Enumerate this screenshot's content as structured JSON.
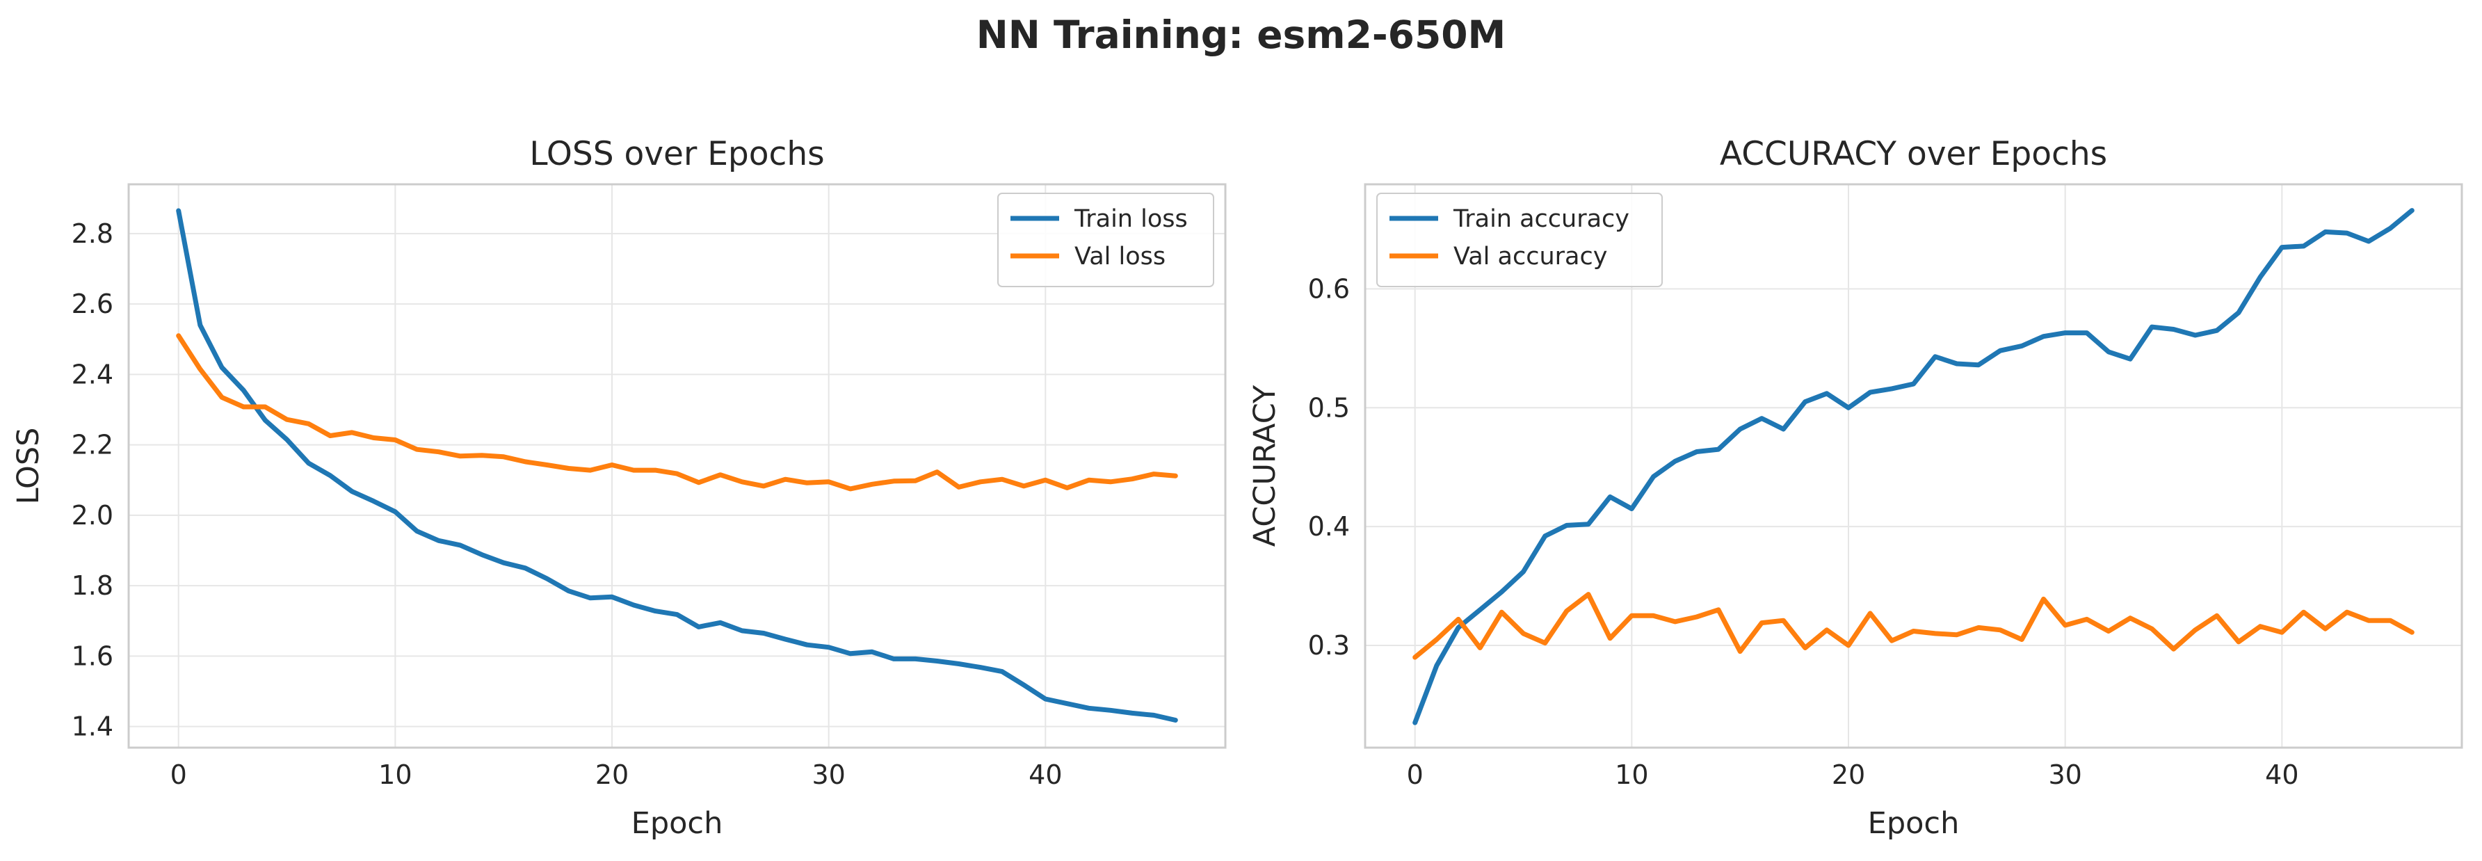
{
  "suptitle": "NN Training: esm2-650M",
  "colors": {
    "train": "#1f77b4",
    "val": "#ff7f0e",
    "grid": "#e6e6e6",
    "spine": "#cccccc"
  },
  "chart_data": [
    {
      "type": "line",
      "title": "LOSS over Epochs",
      "xlabel": "Epoch",
      "ylabel": "LOSS",
      "xlim": [
        -2.3,
        48.3
      ],
      "ylim": [
        1.34,
        2.94
      ],
      "xticks": [
        0,
        10,
        20,
        30,
        40
      ],
      "yticks": [
        1.4,
        1.6,
        1.8,
        2.0,
        2.2,
        2.4,
        2.6,
        2.8
      ],
      "ytick_labels": [
        "1.4",
        "1.6",
        "1.8",
        "2.0",
        "2.2",
        "2.4",
        "2.6",
        "2.8"
      ],
      "grid": true,
      "legend": "upper-right",
      "series": [
        {
          "name": "Train loss",
          "color": "#1f77b4",
          "values": [
            2.865,
            2.54,
            2.42,
            2.355,
            2.27,
            2.215,
            2.148,
            2.113,
            2.068,
            2.04,
            2.01,
            1.955,
            1.928,
            1.915,
            1.888,
            1.865,
            1.85,
            1.82,
            1.785,
            1.765,
            1.768,
            1.745,
            1.728,
            1.718,
            1.683,
            1.695,
            1.672,
            1.665,
            1.648,
            1.632,
            1.625,
            1.607,
            1.612,
            1.592,
            1.592,
            1.586,
            1.578,
            1.568,
            1.556,
            1.518,
            1.478,
            1.465,
            1.452,
            1.446,
            1.438,
            1.432,
            1.418
          ]
        },
        {
          "name": "Val loss",
          "color": "#ff7f0e",
          "values": [
            2.51,
            2.415,
            2.335,
            2.308,
            2.308,
            2.272,
            2.26,
            2.226,
            2.235,
            2.22,
            2.214,
            2.187,
            2.18,
            2.168,
            2.17,
            2.166,
            2.152,
            2.143,
            2.133,
            2.128,
            2.143,
            2.128,
            2.128,
            2.118,
            2.093,
            2.115,
            2.095,
            2.083,
            2.102,
            2.092,
            2.095,
            2.075,
            2.088,
            2.097,
            2.098,
            2.123,
            2.08,
            2.095,
            2.102,
            2.083,
            2.1,
            2.078,
            2.1,
            2.095,
            2.103,
            2.117,
            2.112
          ]
        }
      ]
    },
    {
      "type": "line",
      "title": "ACCURACY over Epochs",
      "xlabel": "Epoch",
      "ylabel": "ACCURACY",
      "xlim": [
        -2.3,
        48.3
      ],
      "ylim": [
        0.214,
        0.688
      ],
      "xticks": [
        0,
        10,
        20,
        30,
        40
      ],
      "yticks": [
        0.3,
        0.4,
        0.5,
        0.6
      ],
      "ytick_labels": [
        "0.3",
        "0.4",
        "0.5",
        "0.6"
      ],
      "grid": true,
      "legend": "upper-left",
      "series": [
        {
          "name": "Train accuracy",
          "color": "#1f77b4",
          "values": [
            0.235,
            0.283,
            0.315,
            0.33,
            0.345,
            0.362,
            0.392,
            0.401,
            0.402,
            0.425,
            0.415,
            0.442,
            0.455,
            0.463,
            0.465,
            0.482,
            0.491,
            0.482,
            0.505,
            0.512,
            0.5,
            0.513,
            0.516,
            0.52,
            0.543,
            0.537,
            0.536,
            0.548,
            0.552,
            0.56,
            0.563,
            0.563,
            0.547,
            0.541,
            0.568,
            0.566,
            0.561,
            0.565,
            0.58,
            0.61,
            0.635,
            0.636,
            0.648,
            0.647,
            0.64,
            0.651,
            0.666
          ]
        },
        {
          "name": "Val accuracy",
          "color": "#ff7f0e",
          "values": [
            0.29,
            0.305,
            0.322,
            0.298,
            0.328,
            0.31,
            0.302,
            0.329,
            0.343,
            0.306,
            0.325,
            0.325,
            0.32,
            0.324,
            0.33,
            0.295,
            0.319,
            0.321,
            0.298,
            0.313,
            0.3,
            0.327,
            0.304,
            0.312,
            0.31,
            0.309,
            0.315,
            0.313,
            0.305,
            0.339,
            0.317,
            0.322,
            0.312,
            0.323,
            0.314,
            0.297,
            0.313,
            0.325,
            0.303,
            0.316,
            0.311,
            0.328,
            0.314,
            0.328,
            0.321,
            0.321,
            0.311
          ]
        }
      ]
    }
  ]
}
